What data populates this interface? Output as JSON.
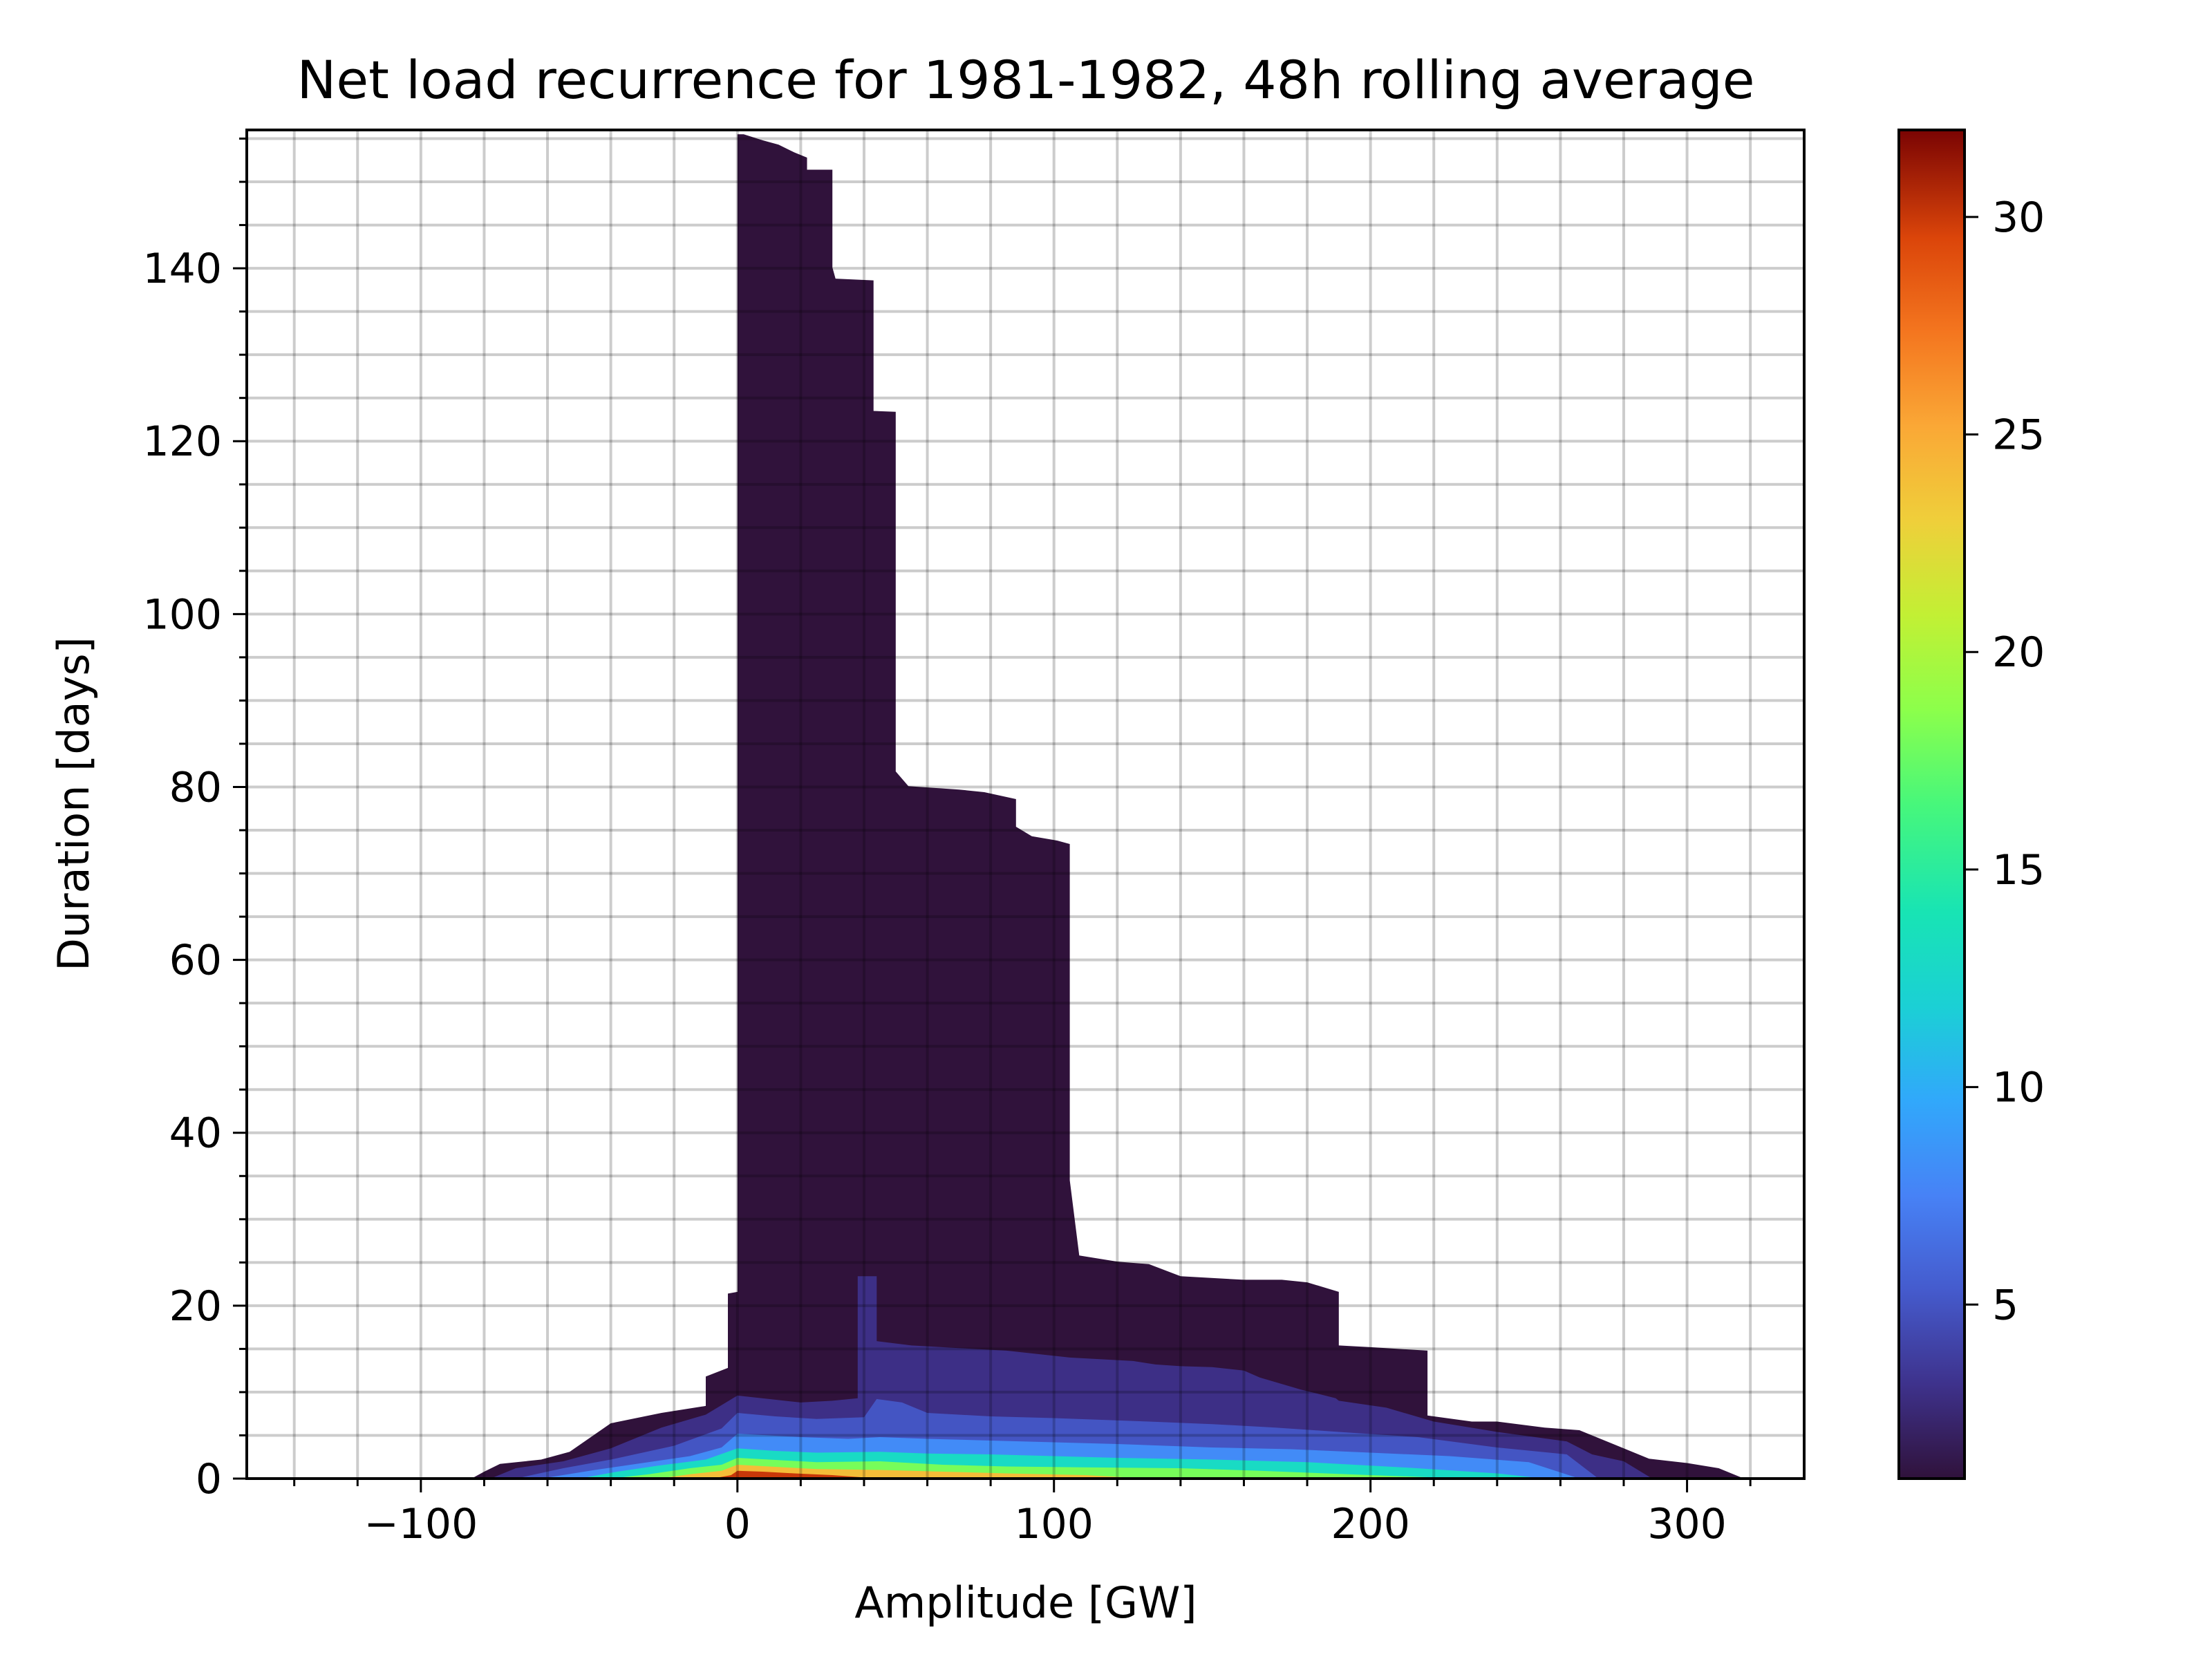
{
  "chart_data": {
    "type": "heatmap",
    "title": "Net load recurrence for 1981-1982, 48h rolling average",
    "xlabel": "Amplitude [GW]",
    "ylabel": "Duration [days]",
    "xlim": [
      -155,
      337
    ],
    "ylim": [
      0,
      156
    ],
    "x_ticks": [
      -100,
      0,
      100,
      200,
      300
    ],
    "x_tick_labels": [
      "−100",
      "0",
      "100",
      "200",
      "300"
    ],
    "y_ticks": [
      0,
      20,
      40,
      60,
      80,
      100,
      120,
      140
    ],
    "y_tick_labels": [
      "0",
      "20",
      "40",
      "60",
      "80",
      "100",
      "120",
      "140"
    ],
    "grid": true,
    "grid_minor": true,
    "colormap": "turbo",
    "colorbar": {
      "range": [
        1,
        32
      ],
      "ticks": [
        5,
        10,
        15,
        20,
        25,
        30
      ],
      "tick_labels": [
        "5",
        "10",
        "15",
        "20",
        "25",
        "30"
      ]
    },
    "layers": [
      {
        "count": 1,
        "envelope": [
          [
            -84,
            0
          ],
          [
            -80,
            0.8
          ],
          [
            -75,
            1.7
          ],
          [
            -62,
            2.2
          ],
          [
            -53,
            3.1
          ],
          [
            -40,
            6.4
          ],
          [
            -24,
            7.6
          ],
          [
            -10,
            8.4
          ],
          [
            -10,
            11.8
          ],
          [
            -3,
            12.8
          ],
          [
            -3,
            21.4
          ],
          [
            0,
            21.6
          ],
          [
            0,
            155.5
          ],
          [
            2,
            155.5
          ],
          [
            8,
            154.8
          ],
          [
            13,
            154.3
          ],
          [
            18,
            153.4
          ],
          [
            22,
            152.8
          ],
          [
            22,
            151.4
          ],
          [
            30,
            151.4
          ],
          [
            30,
            140.1
          ],
          [
            31,
            138.8
          ],
          [
            43,
            138.6
          ],
          [
            43,
            123.5
          ],
          [
            50,
            123.4
          ],
          [
            50,
            117.3
          ],
          [
            50,
            81.8
          ],
          [
            54,
            80.1
          ],
          [
            70,
            79.7
          ],
          [
            78,
            79.4
          ],
          [
            88,
            78.6
          ],
          [
            88,
            75.4
          ],
          [
            93,
            74.3
          ],
          [
            101,
            73.8
          ],
          [
            105,
            73.4
          ],
          [
            105,
            34.5
          ],
          [
            108,
            25.8
          ],
          [
            120,
            25.1
          ],
          [
            130,
            24.8
          ],
          [
            140,
            23.4
          ],
          [
            160,
            23.0
          ],
          [
            172,
            23.0
          ],
          [
            180,
            22.7
          ],
          [
            190,
            21.6
          ],
          [
            190,
            15.4
          ],
          [
            200,
            15.2
          ],
          [
            218,
            14.8
          ],
          [
            218,
            7.3
          ],
          [
            232,
            6.6
          ],
          [
            240,
            6.6
          ],
          [
            255,
            5.9
          ],
          [
            266,
            5.6
          ],
          [
            276,
            4.1
          ],
          [
            288,
            2.3
          ],
          [
            300,
            1.8
          ],
          [
            310,
            1.2
          ],
          [
            318,
            0
          ]
        ]
      },
      {
        "count": 3,
        "envelope": [
          [
            -78,
            0
          ],
          [
            -70,
            1.2
          ],
          [
            -55,
            2.0
          ],
          [
            -40,
            3.5
          ],
          [
            -24,
            5.9
          ],
          [
            -10,
            7.4
          ],
          [
            0,
            9.6
          ],
          [
            10,
            9.2
          ],
          [
            20,
            8.8
          ],
          [
            30,
            9.0
          ],
          [
            38,
            9.3
          ],
          [
            38,
            23.4
          ],
          [
            44,
            23.4
          ],
          [
            44,
            15.9
          ],
          [
            55,
            15.4
          ],
          [
            70,
            15.1
          ],
          [
            85,
            14.8
          ],
          [
            100,
            14.2
          ],
          [
            105,
            14.0
          ],
          [
            125,
            13.6
          ],
          [
            132,
            13.2
          ],
          [
            140,
            13.0
          ],
          [
            150,
            12.9
          ],
          [
            160,
            12.5
          ],
          [
            165,
            11.7
          ],
          [
            178,
            10.3
          ],
          [
            189,
            9.3
          ],
          [
            190,
            9.0
          ],
          [
            205,
            8.2
          ],
          [
            220,
            6.6
          ],
          [
            240,
            5.4
          ],
          [
            262,
            4.3
          ],
          [
            270,
            2.8
          ],
          [
            280,
            2.0
          ],
          [
            289,
            0
          ]
        ]
      },
      {
        "count": 5,
        "envelope": [
          [
            -70,
            0
          ],
          [
            -55,
            1.2
          ],
          [
            -40,
            2.2
          ],
          [
            -20,
            3.8
          ],
          [
            -5,
            5.8
          ],
          [
            0,
            7.6
          ],
          [
            12,
            7.2
          ],
          [
            25,
            6.9
          ],
          [
            40,
            7.1
          ],
          [
            44,
            9.2
          ],
          [
            52,
            8.8
          ],
          [
            60,
            7.6
          ],
          [
            80,
            7.2
          ],
          [
            100,
            7.0
          ],
          [
            130,
            6.6
          ],
          [
            150,
            6.3
          ],
          [
            170,
            5.9
          ],
          [
            190,
            5.4
          ],
          [
            215,
            4.8
          ],
          [
            240,
            3.6
          ],
          [
            262,
            2.8
          ],
          [
            272,
            0
          ]
        ]
      },
      {
        "count": 8,
        "envelope": [
          [
            -62,
            0
          ],
          [
            -45,
            1.0
          ],
          [
            -30,
            1.8
          ],
          [
            -15,
            2.6
          ],
          [
            -5,
            3.6
          ],
          [
            0,
            5.2
          ],
          [
            10,
            5.0
          ],
          [
            20,
            4.8
          ],
          [
            35,
            4.6
          ],
          [
            45,
            4.8
          ],
          [
            60,
            4.6
          ],
          [
            80,
            4.4
          ],
          [
            100,
            4.2
          ],
          [
            120,
            4.0
          ],
          [
            150,
            3.6
          ],
          [
            175,
            3.4
          ],
          [
            200,
            3.0
          ],
          [
            225,
            2.6
          ],
          [
            250,
            1.9
          ],
          [
            266,
            0
          ]
        ]
      },
      {
        "count": 13,
        "envelope": [
          [
            -50,
            0
          ],
          [
            -38,
            0.8
          ],
          [
            -25,
            1.5
          ],
          [
            -10,
            2.2
          ],
          [
            0,
            3.5
          ],
          [
            12,
            3.2
          ],
          [
            25,
            3.0
          ],
          [
            45,
            3.1
          ],
          [
            60,
            2.9
          ],
          [
            80,
            2.8
          ],
          [
            100,
            2.6
          ],
          [
            120,
            2.4
          ],
          [
            150,
            2.2
          ],
          [
            180,
            1.9
          ],
          [
            210,
            1.3
          ],
          [
            240,
            0.6
          ],
          [
            255,
            0
          ]
        ]
      },
      {
        "count": 18,
        "envelope": [
          [
            -40,
            0
          ],
          [
            -28,
            0.5
          ],
          [
            -15,
            1.2
          ],
          [
            -5,
            1.6
          ],
          [
            0,
            2.4
          ],
          [
            10,
            2.2
          ],
          [
            25,
            1.9
          ],
          [
            45,
            2.0
          ],
          [
            65,
            1.6
          ],
          [
            85,
            1.4
          ],
          [
            110,
            1.3
          ],
          [
            140,
            1.2
          ],
          [
            165,
            0.9
          ],
          [
            200,
            0.4
          ],
          [
            230,
            0
          ]
        ]
      },
      {
        "count": 24,
        "envelope": [
          [
            -25,
            0
          ],
          [
            -15,
            0.5
          ],
          [
            -5,
            0.9
          ],
          [
            0,
            1.6
          ],
          [
            10,
            1.4
          ],
          [
            25,
            1.1
          ],
          [
            45,
            1.0
          ],
          [
            65,
            0.8
          ],
          [
            85,
            0.6
          ],
          [
            110,
            0.4
          ],
          [
            130,
            0
          ]
        ]
      },
      {
        "count": 30,
        "envelope": [
          [
            -8,
            0
          ],
          [
            -2,
            0.4
          ],
          [
            0,
            0.9
          ],
          [
            8,
            0.8
          ],
          [
            18,
            0.6
          ],
          [
            30,
            0.4
          ],
          [
            45,
            0
          ]
        ]
      }
    ]
  }
}
